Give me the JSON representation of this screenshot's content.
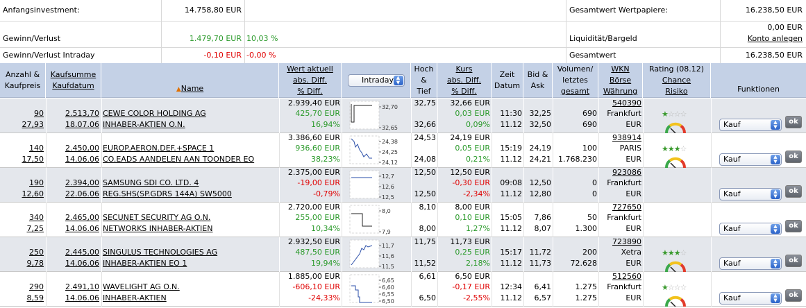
{
  "summary": {
    "initial_label": "Anfangsinvestment:",
    "initial_value": "14.758,80 EUR",
    "total_securities_label": "Gesamtwert Wertpapiere:",
    "total_securities_value": "16.238,50 EUR",
    "profit_label": "Gewinn/Verlust",
    "profit_value": "1.479,70 EUR",
    "profit_pct": "10,03 %",
    "liquidity_label": "Liquidität/Bargeld",
    "liquidity_value": "0,00 EUR",
    "konto_link": "Konto anlegen",
    "intraday_label": "Gewinn/Verlust Intraday",
    "intraday_value": "-0,10 EUR",
    "intraday_pct": "-0,00 %",
    "total_label": "Gesamtwert",
    "total_value": "16.238,50 EUR"
  },
  "header": {
    "anzahl": "Anzahl &",
    "kaufpreis": "Kaufpreis",
    "kaufsumme": "Kaufsumme",
    "kaufdatum": "Kaufdatum",
    "name": "Name",
    "wert1": "Wert aktuell",
    "wert2": "abs. Diff.",
    "wert3": "% Diff.",
    "intraday_select": "Intraday",
    "hoch1": "Hoch",
    "hoch2": "&",
    "hoch3": "Tief",
    "kurs1": "Kurs",
    "kurs2": "abs. Diff.",
    "kurs3": "% Diff.",
    "zeit1": "Zeit",
    "zeit2": "Datum",
    "bid1": "Bid &",
    "bid2": "Ask",
    "vol1": "Volumen/",
    "vol2": "letztes",
    "vol3": "gesamt",
    "wkn1": "WKN",
    "wkn2": "Börse",
    "wkn3": "Währung",
    "rating1": "Rating (08.12)",
    "rating2": "Chance",
    "rating3": "Risiko",
    "funktionen": "Funktionen"
  },
  "colors": {
    "header_bg": "#c4d1e6",
    "alt_row": "#e4e7ec",
    "positive": "#2b9a2b",
    "negative": "#e00000",
    "star": "#3a9a2e"
  },
  "action_label": "Kauf",
  "ok_label": "ok",
  "rows": [
    {
      "qty": "90",
      "price": "27,93",
      "sum": "2.513,70",
      "date": "18.07.06",
      "name1": "CEWE COLOR HOLDING AG",
      "name2": "INHABER-AKTIEN O.N.",
      "wert": "2.939,40 EUR",
      "abs": "425,70 EUR",
      "pct": "16,94%",
      "dir": "pos",
      "spark_ticks": [
        "32,70",
        "32,65"
      ],
      "hoch": "32,75",
      "tief": "32,66",
      "kurs": "32,66 EUR",
      "kabs": "0,03 EUR",
      "kpct": "0,09%",
      "kdir": "pos",
      "zeit": "11:30",
      "datum": "11.12",
      "bid": "32,25",
      "ask": "32,50",
      "vol1": "690",
      "vol2": "690",
      "wkn": "540390",
      "boerse": "Frankfurt",
      "waehrung": "EUR",
      "stars": 1,
      "gauge": true
    },
    {
      "qty": "140",
      "price": "17,50",
      "sum": "2.450,00",
      "date": "14.06.06",
      "name1": "EUROP.AERON.DEF.+SPACE 1",
      "name2": "CO.EADS AANDELEN AAN TOONDER EO",
      "wert": "3.386,60 EUR",
      "abs": "936,60 EUR",
      "pct": "38,23%",
      "dir": "pos",
      "spark_ticks": [
        "24,38",
        "24,25",
        "24,12"
      ],
      "hoch": "24,53",
      "tief": "24,08",
      "kurs": "24,19 EUR",
      "kabs": "0,05 EUR",
      "kpct": "0,21%",
      "kdir": "pos",
      "zeit": "15:19",
      "datum": "11.12",
      "bid": "24,19",
      "ask": "24,21",
      "vol1": "100",
      "vol2": "1.768.230",
      "wkn": "938914",
      "boerse": "PARIS",
      "waehrung": "EUR",
      "stars": 3,
      "gauge": true
    },
    {
      "qty": "190",
      "price": "12,60",
      "sum": "2.394,00",
      "date": "22.06.06",
      "name1": "SAMSUNG SDI CO. LTD. 4",
      "name2": "REG.SHS(SP.GDRS 144A) SW5000",
      "wert": "2.375,00 EUR",
      "abs": "-19,00 EUR",
      "pct": "-0,79%",
      "dir": "neg",
      "spark_ticks": [
        "12,7",
        "12,6",
        "12,5"
      ],
      "hoch": "12,50",
      "tief": "12,50",
      "kurs": "12,50 EUR",
      "kabs": "-0,30 EUR",
      "kpct": "-2,34%",
      "kdir": "neg",
      "zeit": "09:08",
      "datum": "11.12",
      "bid": "12,50",
      "ask": "12,80",
      "vol1": "0",
      "vol2": "0",
      "wkn": "923086",
      "boerse": "Frankfurt",
      "waehrung": "EUR",
      "stars": 0,
      "gauge": false
    },
    {
      "qty": "340",
      "price": "7,25",
      "sum": "2.465,00",
      "date": "14.06.06",
      "name1": "SECUNET SECURITY AG O.N.",
      "name2": "NETWORKS INHABER-AKTIEN",
      "wert": "2.720,00 EUR",
      "abs": "255,00 EUR",
      "pct": "10,34%",
      "dir": "pos",
      "spark_ticks": [
        "8,0",
        "7,9"
      ],
      "hoch": "8,10",
      "tief": "8,00",
      "kurs": "8,00 EUR",
      "kabs": "0,10 EUR",
      "kpct": "1,27%",
      "kdir": "pos",
      "zeit": "15:05",
      "datum": "11.12",
      "bid": "7,86",
      "ask": "8,07",
      "vol1": "50",
      "vol2": "1.300",
      "wkn": "727650",
      "boerse": "Frankfurt",
      "waehrung": "EUR",
      "stars": 0,
      "gauge": false
    },
    {
      "qty": "250",
      "price": "9,78",
      "sum": "2.445,00",
      "date": "14.06.06",
      "name1": "SINGULUS TECHNOLOGIES AG",
      "name2": "INHABER-AKTIEN EO 1",
      "wert": "2.932,50 EUR",
      "abs": "487,50 EUR",
      "pct": "19,94%",
      "dir": "pos",
      "spark_ticks": [
        "11,7",
        "11,6",
        "11,5"
      ],
      "hoch": "11,75",
      "tief": "11,52",
      "kurs": "11,73 EUR",
      "kabs": "0,25 EUR",
      "kpct": "2,18%",
      "kdir": "pos",
      "zeit": "15:17",
      "datum": "11.12",
      "bid": "11,72",
      "ask": "11,73",
      "vol1": "200",
      "vol2": "72.628",
      "wkn": "723890",
      "boerse": "Xetra",
      "waehrung": "EUR",
      "stars": 3,
      "gauge": true
    },
    {
      "qty": "290",
      "price": "8,59",
      "sum": "2.491,10",
      "date": "14.06.06",
      "name1": "WAVELIGHT AG O.N.",
      "name2": "INHABER-AKTIEN",
      "wert": "1.885,00 EUR",
      "abs": "-606,10 EUR",
      "pct": "-24,33%",
      "dir": "neg",
      "spark_ticks": [
        "6,65",
        "6,60",
        "6,55",
        "6,50"
      ],
      "hoch": "6,61",
      "tief": "6,50",
      "kurs": "6,50 EUR",
      "kabs": "-0,17 EUR",
      "kpct": "-2,55%",
      "kdir": "neg",
      "zeit": "12:34",
      "datum": "11.12",
      "bid": "6,41",
      "ask": "6,57",
      "vol1": "1.275",
      "vol2": "1.275",
      "wkn": "512560",
      "boerse": "Frankfurt",
      "waehrung": "EUR",
      "stars": 1,
      "gauge": true
    }
  ]
}
